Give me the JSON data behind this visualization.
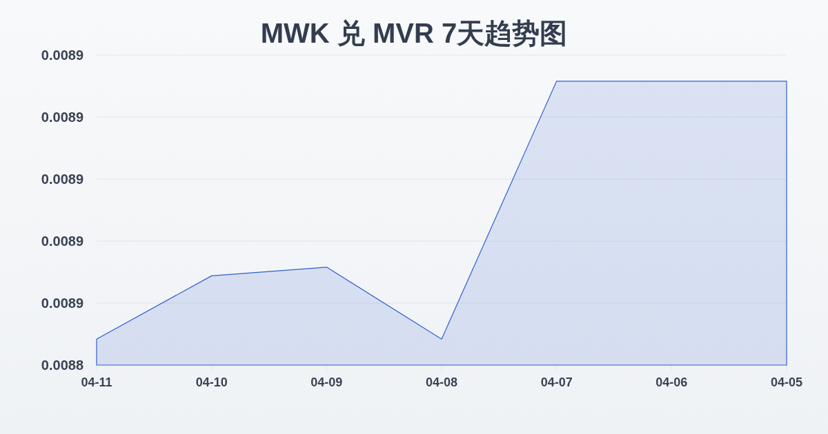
{
  "chart_data": {
    "type": "area",
    "title": "MWK 兑 MVR 7天趋势图",
    "categories": [
      "04-11",
      "04-10",
      "04-09",
      "04-08",
      "04-07",
      "04-06",
      "04-05"
    ],
    "series": [
      {
        "color": "#2f5fcf",
        "values": [
          0.0088542,
          0.0088644,
          0.0088658,
          0.0088542,
          0.0088958,
          0.0088958,
          0.0088958
        ]
      }
    ],
    "ylim": [
      0.00885,
      0.0089
    ],
    "yticks": [
      {
        "value": 0.00885,
        "label": "0.0088"
      },
      {
        "value": 0.00886,
        "label": "0.0089"
      },
      {
        "value": 0.00887,
        "label": "0.0089"
      },
      {
        "value": 0.00888,
        "label": "0.0089"
      },
      {
        "value": 0.00889,
        "label": "0.0089"
      },
      {
        "value": 0.0089,
        "label": "0.0089"
      }
    ],
    "grid": "y"
  }
}
